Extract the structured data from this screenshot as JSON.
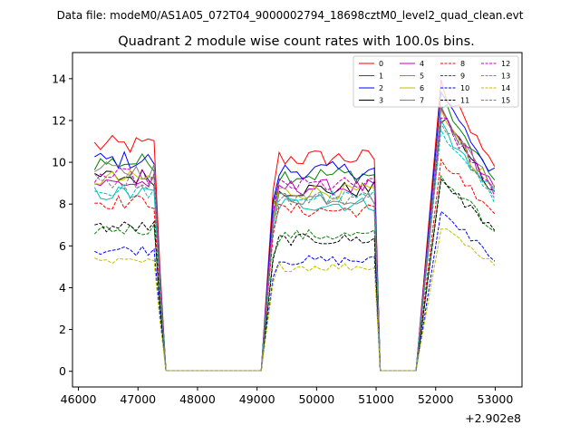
{
  "chart_data": {
    "type": "line",
    "suptitle": "Data file: modeM0/AS1A05_072T04_9000002794_18698cztM0_level2_quad_clean.evt",
    "title": "Quadrant 2 module wise count rates with 100.0s bins.",
    "xlabel": "",
    "ylabel": "",
    "x_offset_label": "+2.902e8",
    "xlim": [
      45900,
      53450
    ],
    "ylim": [
      -0.75,
      15.25
    ],
    "xticks": [
      46000,
      47000,
      48000,
      49000,
      50000,
      51000,
      52000,
      53000
    ],
    "xtick_labels": [
      "46000",
      "47000",
      "48000",
      "49000",
      "50000",
      "51000",
      "52000",
      "53000"
    ],
    "yticks": [
      0,
      2,
      4,
      6,
      8,
      10,
      12,
      14
    ],
    "ytick_labels": [
      "0",
      "2",
      "4",
      "6",
      "8",
      "10",
      "12",
      "14"
    ],
    "segments": [
      {
        "start": 46270,
        "high_count": 11,
        "low_count": 18
      },
      {
        "start": 49270,
        "high_count": 18,
        "low_count": 7
      },
      {
        "start": 52090,
        "high_count": 10,
        "low_count": 0
      }
    ],
    "bin_width": 100,
    "legend_position": "upper right",
    "series": [
      {
        "name": "0",
        "color": "#ff0000",
        "dash": "solid",
        "levels": [
          10.8,
          10.2,
          12.4
        ]
      },
      {
        "name": "1",
        "color": "#008000",
        "dash": "solid",
        "levels": [
          10.0,
          9.4,
          11.6
        ]
      },
      {
        "name": "2",
        "color": "#0000ff",
        "dash": "solid",
        "levels": [
          10.1,
          9.6,
          12.0
        ]
      },
      {
        "name": "3",
        "color": "#000000",
        "dash": "solid",
        "levels": [
          9.3,
          8.7,
          11.0
        ]
      },
      {
        "name": "4",
        "color": "#bf00bf",
        "dash": "solid",
        "levels": [
          9.0,
          8.8,
          11.2
        ]
      },
      {
        "name": "5",
        "color": "#00bfbf",
        "dash": "solid",
        "levels": [
          8.5,
          8.0,
          10.7
        ]
      },
      {
        "name": "6",
        "color": "#bfbf00",
        "dash": "solid",
        "levels": [
          9.2,
          8.6,
          11.0
        ]
      },
      {
        "name": "7",
        "color": "#808080",
        "dash": "solid",
        "levels": [
          9.6,
          8.3,
          11.2
        ]
      },
      {
        "name": "8",
        "color": "#ff0000",
        "dash": "dashed",
        "levels": [
          8.1,
          7.7,
          9.3
        ]
      },
      {
        "name": "9",
        "color": "#008000",
        "dash": "dashed",
        "levels": [
          6.8,
          6.5,
          8.6
        ]
      },
      {
        "name": "10",
        "color": "#0000ff",
        "dash": "dashed",
        "levels": [
          5.8,
          5.3,
          6.9
        ]
      },
      {
        "name": "11",
        "color": "#000000",
        "dash": "dashed",
        "levels": [
          6.9,
          6.3,
          8.4
        ]
      },
      {
        "name": "12",
        "color": "#bf00bf",
        "dash": "dashed",
        "levels": [
          9.3,
          8.9,
          11.0
        ]
      },
      {
        "name": "13",
        "color": "#00bfbf",
        "dash": "dashed",
        "levels": [
          8.6,
          8.3,
          10.6
        ]
      },
      {
        "name": "14",
        "color": "#bfbf00",
        "dash": "dashed",
        "levels": [
          5.2,
          5.0,
          6.4
        ]
      },
      {
        "name": "15",
        "color": "#808080",
        "dash": "dashed",
        "levels": [
          9.1,
          8.3,
          10.9
        ]
      }
    ]
  }
}
